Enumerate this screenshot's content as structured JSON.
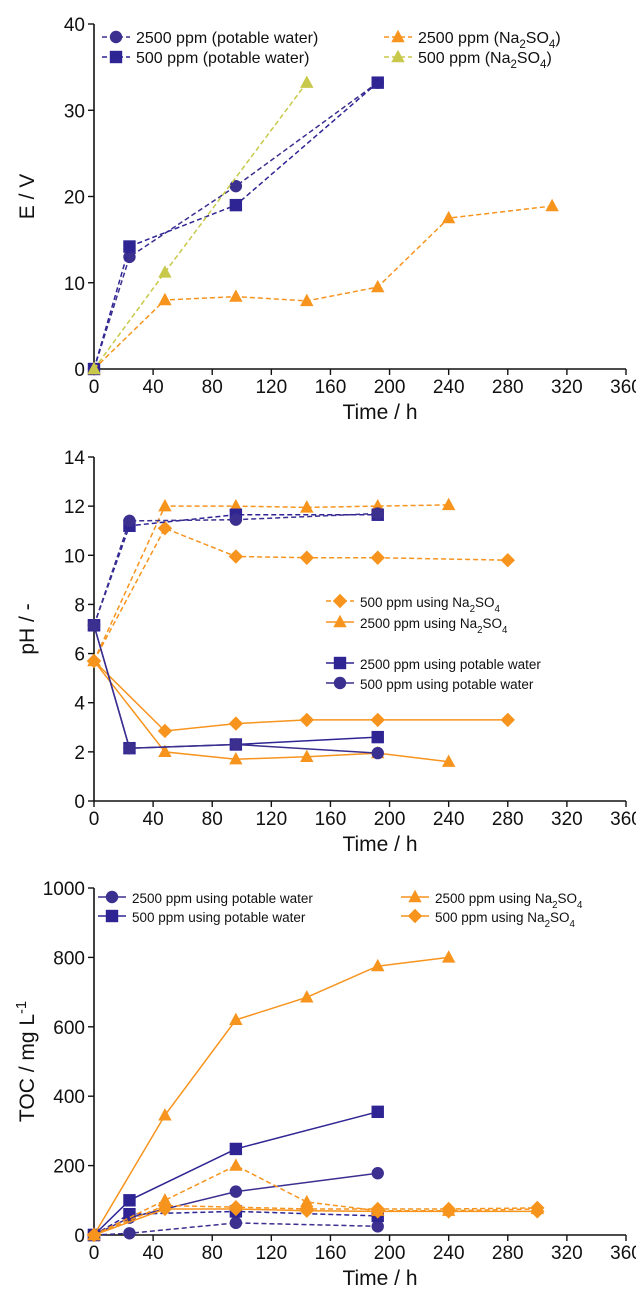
{
  "chart_data": [
    {
      "type": "line",
      "xlabel": "Time / h",
      "ylabel": "E / V",
      "xlim": [
        0,
        360
      ],
      "ylim": [
        0,
        40
      ],
      "xticks": [
        0,
        40,
        80,
        120,
        160,
        200,
        240,
        280,
        320,
        360
      ],
      "yticks": [
        0,
        10,
        20,
        30,
        40
      ],
      "grid": false,
      "legend": "top",
      "series": [
        {
          "name": "2500 ppm (potable water)",
          "marker": "circle",
          "color": "#3b2f8f",
          "dash": true,
          "points": [
            [
              0,
              0
            ],
            [
              24,
              13
            ],
            [
              96,
              21.2
            ],
            [
              192,
              33.2
            ]
          ]
        },
        {
          "name": "500 ppm (potable water)",
          "marker": "square",
          "color": "#2e2494",
          "dash": true,
          "points": [
            [
              0,
              0
            ],
            [
              24,
              14.2
            ],
            [
              96,
              19
            ],
            [
              192,
              33.2
            ]
          ]
        },
        {
          "name_main": "2500 ppm (Na",
          "name_sub": "2",
          "name_tail": "SO",
          "name_sub2": "4",
          "name_end": ")",
          "marker": "triangle",
          "color": "#f7941d",
          "dash": true,
          "points": [
            [
              0,
              0
            ],
            [
              48,
              8
            ],
            [
              96,
              8.4
            ],
            [
              144,
              7.9
            ],
            [
              192,
              9.5
            ],
            [
              240,
              17.5
            ],
            [
              310,
              18.9
            ]
          ]
        },
        {
          "name_main": "500 ppm (Na",
          "name_sub": "2",
          "name_tail": "SO",
          "name_sub2": "4",
          "name_end": ")",
          "marker": "triangle",
          "color": "#c8c94a",
          "dash": true,
          "points": [
            [
              0,
              0
            ],
            [
              48,
              11.2
            ],
            [
              144,
              33.2
            ]
          ]
        }
      ]
    },
    {
      "type": "line",
      "xlabel": "Time / h",
      "ylabel": "pH / -",
      "xlim": [
        0,
        360
      ],
      "ylim": [
        0,
        14
      ],
      "xticks": [
        0,
        40,
        80,
        120,
        160,
        200,
        240,
        280,
        320,
        360
      ],
      "yticks": [
        0,
        2,
        4,
        6,
        8,
        10,
        12,
        14
      ],
      "grid": false,
      "legend": "center-right",
      "series": [
        {
          "name_main": "500 ppm using Na",
          "name_sub": "2",
          "name_tail": "SO",
          "name_sub2": "4",
          "marker": "diamond",
          "color": "#f7941d",
          "legend": true,
          "lines": [
            {
              "dash": true,
              "points": [
                [
                  0,
                  5.7
                ],
                [
                  48,
                  11.1
                ],
                [
                  96,
                  9.95
                ],
                [
                  144,
                  9.9
                ],
                [
                  192,
                  9.9
                ],
                [
                  280,
                  9.8
                ]
              ]
            },
            {
              "dash": false,
              "points": [
                [
                  0,
                  5.7
                ],
                [
                  48,
                  2.85
                ],
                [
                  96,
                  3.15
                ],
                [
                  144,
                  3.3
                ],
                [
                  192,
                  3.3
                ],
                [
                  280,
                  3.3
                ]
              ]
            }
          ]
        },
        {
          "name_main": "2500 ppm using Na",
          "name_sub": "2",
          "name_tail": "SO",
          "name_sub2": "4",
          "marker": "triangle",
          "color": "#f7941d",
          "legend": true,
          "lines": [
            {
              "dash": true,
              "points": [
                [
                  0,
                  5.7
                ],
                [
                  48,
                  12
                ],
                [
                  96,
                  12
                ],
                [
                  144,
                  11.95
                ],
                [
                  192,
                  12
                ],
                [
                  240,
                  12.05
                ]
              ]
            },
            {
              "dash": false,
              "points": [
                [
                  0,
                  5.7
                ],
                [
                  48,
                  2
                ],
                [
                  96,
                  1.7
                ],
                [
                  144,
                  1.8
                ],
                [
                  192,
                  1.95
                ],
                [
                  240,
                  1.6
                ]
              ]
            }
          ]
        },
        {
          "name": "2500 ppm using potable water",
          "marker": "square",
          "color": "#2e2494",
          "legend": true,
          "lines": [
            {
              "dash": true,
              "points": [
                [
                  0,
                  7.15
                ],
                [
                  24,
                  11.2
                ],
                [
                  96,
                  11.65
                ],
                [
                  192,
                  11.65
                ]
              ]
            },
            {
              "dash": false,
              "points": [
                [
                  0,
                  7.15
                ],
                [
                  24,
                  2.15
                ],
                [
                  96,
                  2.3
                ],
                [
                  192,
                  2.6
                ]
              ]
            }
          ]
        },
        {
          "name": "500 ppm using potable water",
          "marker": "circle",
          "color": "#3b2f8f",
          "legend": true,
          "lines": [
            {
              "dash": true,
              "points": [
                [
                  0,
                  7.15
                ],
                [
                  24,
                  11.4
                ],
                [
                  96,
                  11.45
                ],
                [
                  192,
                  11.7
                ]
              ]
            },
            {
              "dash": false,
              "points": [
                [
                  0,
                  7.15
                ],
                [
                  24,
                  2.15
                ],
                [
                  96,
                  2.3
                ],
                [
                  192,
                  1.95
                ]
              ]
            }
          ]
        }
      ]
    },
    {
      "type": "line",
      "xlabel": "Time / h",
      "ylabel_main": "TOC / mg L",
      "ylabel_sup": "-1",
      "xlim": [
        0,
        360
      ],
      "ylim": [
        0,
        1000
      ],
      "xticks": [
        0,
        40,
        80,
        120,
        160,
        200,
        240,
        280,
        320,
        360
      ],
      "yticks": [
        0,
        200,
        400,
        600,
        800,
        1000
      ],
      "grid": false,
      "legend": "top",
      "series": [
        {
          "name": "2500 ppm using potable water",
          "marker": "circle",
          "color": "#3b2f8f",
          "lines": [
            {
              "dash": false,
              "points": [
                [
                  0,
                  0
                ],
                [
                  24,
                  50
                ],
                [
                  96,
                  125
                ],
                [
                  192,
                  178
                ]
              ]
            },
            {
              "dash": true,
              "points": [
                [
                  0,
                  0
                ],
                [
                  24,
                  5
                ],
                [
                  96,
                  35
                ],
                [
                  192,
                  25
                ]
              ]
            }
          ]
        },
        {
          "name": "500 ppm using potable water",
          "marker": "square",
          "color": "#2e2494",
          "lines": [
            {
              "dash": false,
              "points": [
                [
                  0,
                  0
                ],
                [
                  24,
                  100
                ],
                [
                  96,
                  248
                ],
                [
                  192,
                  355
                ]
              ]
            },
            {
              "dash": true,
              "points": [
                [
                  0,
                  0
                ],
                [
                  24,
                  60
                ],
                [
                  96,
                  68
                ],
                [
                  192,
                  55
                ]
              ]
            }
          ]
        },
        {
          "name_main": "2500 ppm using Na",
          "name_sub": "2",
          "name_tail": "SO",
          "name_sub2": "4",
          "marker": "triangle",
          "color": "#f7941d",
          "lines": [
            {
              "dash": false,
              "points": [
                [
                  0,
                  0
                ],
                [
                  48,
                  345
                ],
                [
                  96,
                  620
                ],
                [
                  144,
                  685
                ],
                [
                  192,
                  775
                ],
                [
                  240,
                  800
                ]
              ]
            },
            {
              "dash": true,
              "points": [
                [
                  0,
                  0
                ],
                [
                  48,
                  100
                ],
                [
                  96,
                  200
                ],
                [
                  144,
                  95
                ],
                [
                  192,
                  70
                ],
                [
                  240,
                  70
                ],
                [
                  300,
                  75
                ]
              ]
            }
          ]
        },
        {
          "name_main": "500 ppm using Na",
          "name_sub": "2",
          "name_tail": "SO",
          "name_sub2": "4",
          "marker": "diamond",
          "color": "#f7941d",
          "lines": [
            {
              "dash": false,
              "points": [
                [
                  0,
                  0
                ],
                [
                  48,
                  75
                ],
                [
                  96,
                  75
                ],
                [
                  144,
                  70
                ],
                [
                  192,
                  68
                ],
                [
                  240,
                  68
                ],
                [
                  300,
                  68
                ]
              ]
            },
            {
              "dash": true,
              "points": [
                [
                  0,
                  0
                ],
                [
                  48,
                  85
                ],
                [
                  96,
                  80
                ],
                [
                  144,
                  75
                ],
                [
                  192,
                  75
                ],
                [
                  240,
                  75
                ],
                [
                  300,
                  78
                ]
              ]
            }
          ]
        }
      ]
    }
  ]
}
